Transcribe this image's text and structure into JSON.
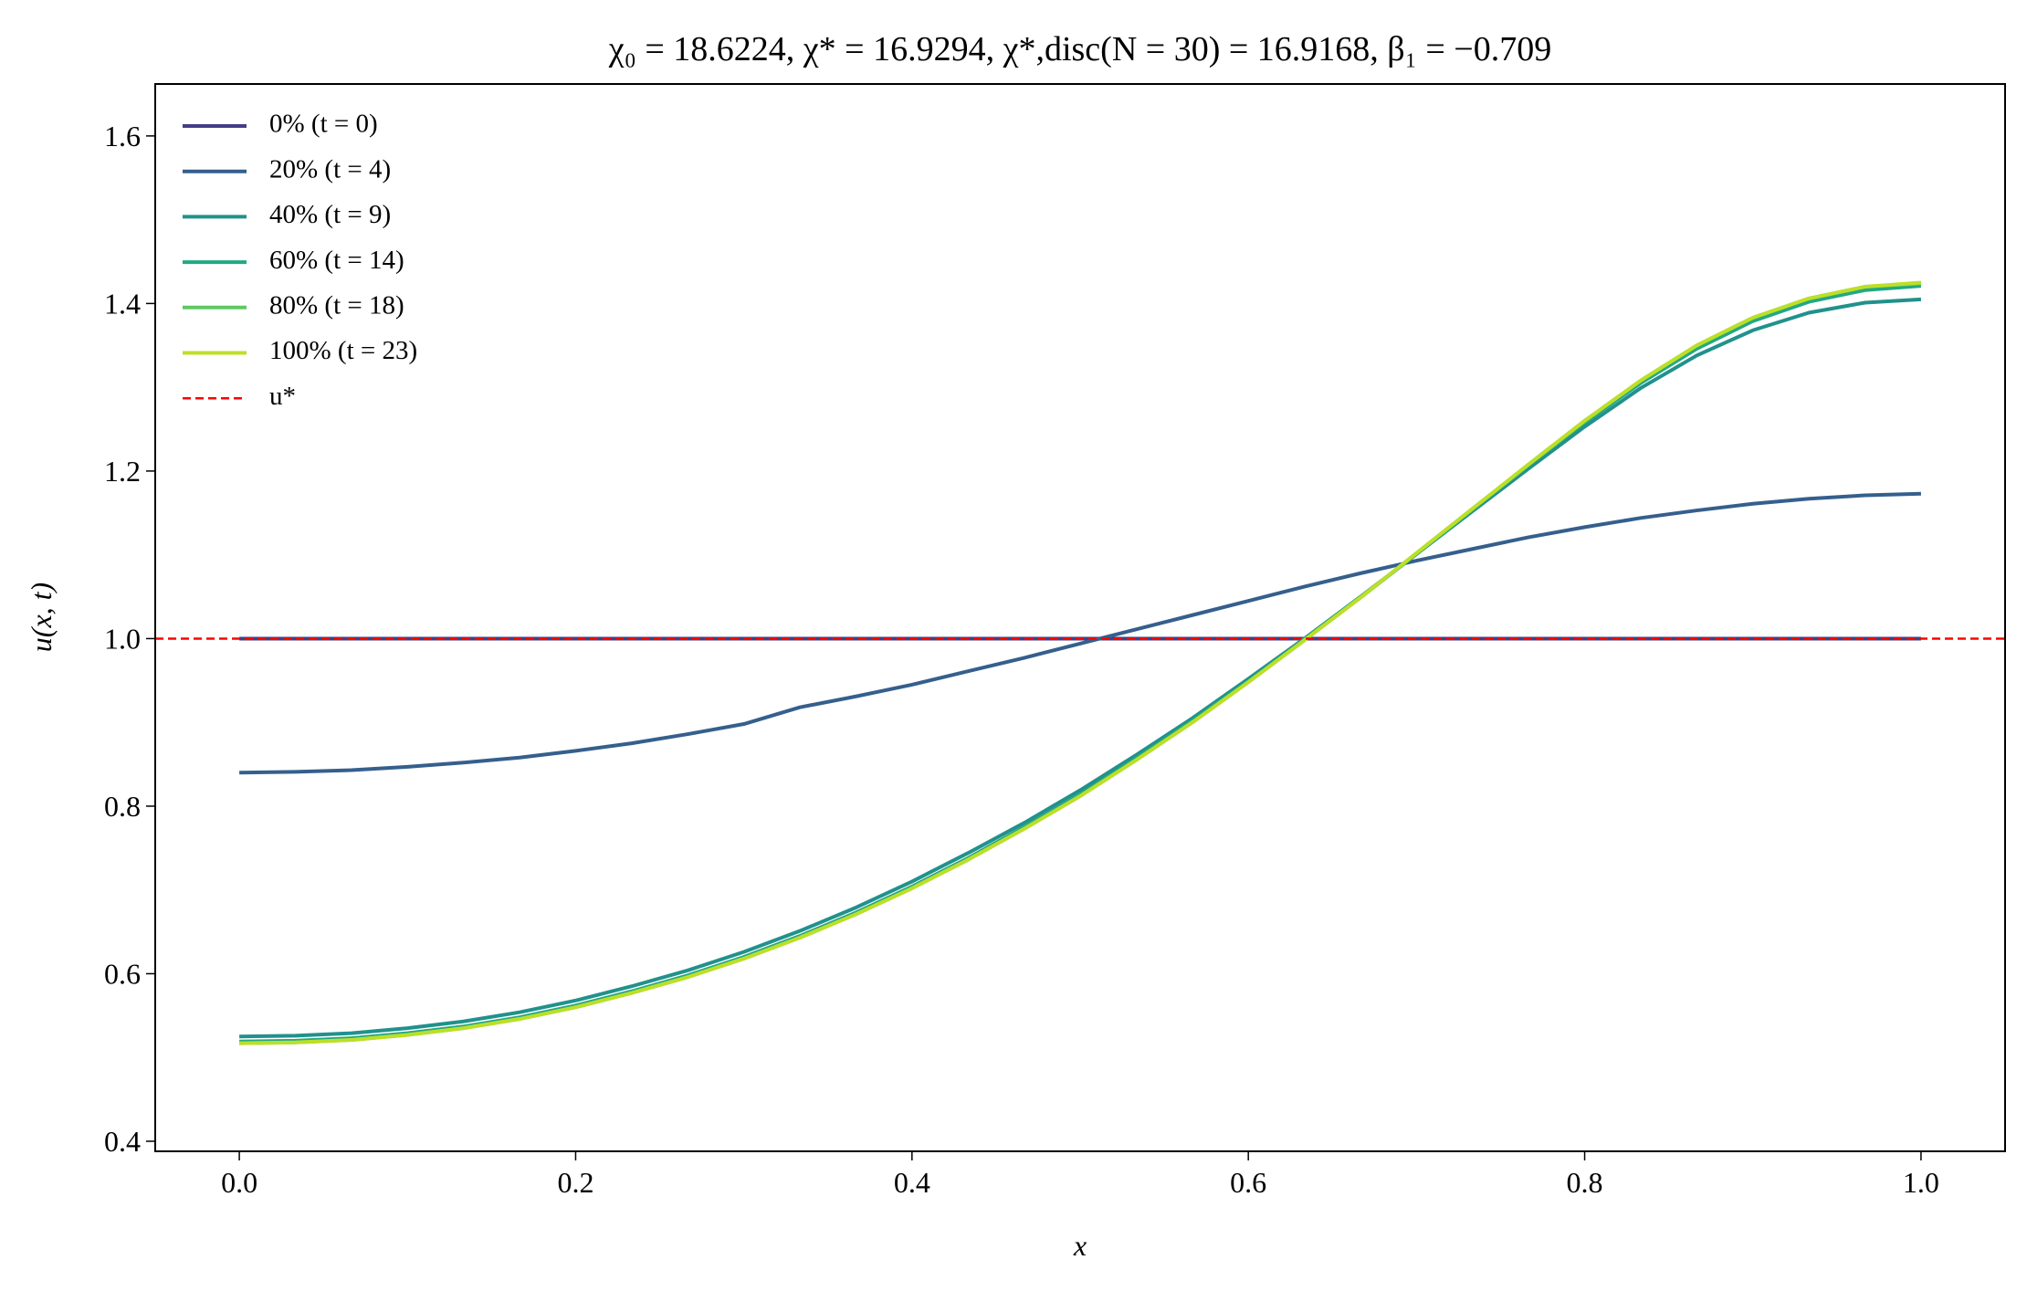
{
  "chart_data": {
    "type": "line",
    "title": "χ₀ = 18.6224,  χ* = 16.9294,  χ*,disc(N = 30) = 16.9168,  β₁ = −0.709",
    "xlabel": "x",
    "ylabel": "u(x, t)",
    "x": [
      0,
      0.0333,
      0.0667,
      0.1,
      0.1333,
      0.1667,
      0.2,
      0.2333,
      0.2667,
      0.3,
      0.3333,
      0.3667,
      0.4,
      0.4333,
      0.4667,
      0.5,
      0.5333,
      0.5667,
      0.6,
      0.6333,
      0.6667,
      0.7,
      0.7333,
      0.7667,
      0.8,
      0.8333,
      0.8667,
      0.9,
      0.9333,
      0.9667,
      1
    ],
    "series": [
      {
        "name": "0% (t = 0)",
        "color": "#433e85",
        "values": [
          1,
          1,
          1,
          1,
          1,
          1,
          1,
          1,
          1,
          1,
          1,
          1,
          1,
          1,
          1,
          1,
          1,
          1,
          1,
          1,
          1,
          1,
          1,
          1,
          1,
          1,
          1,
          1,
          1,
          1,
          1
        ]
      },
      {
        "name": "20% (t = 4)",
        "color": "#355f8d",
        "values": [
          0.84,
          0.841,
          0.843,
          0.847,
          0.852,
          0.858,
          0.866,
          0.875,
          0.886,
          0.898,
          0.918,
          0.931,
          0.945,
          0.961,
          0.977,
          0.994,
          1.011,
          1.028,
          1.045,
          1.062,
          1.078,
          1.093,
          1.107,
          1.121,
          1.133,
          1.144,
          1.153,
          1.161,
          1.167,
          1.171,
          1.173
        ]
      },
      {
        "name": "40% (t = 9)",
        "color": "#21918c",
        "values": [
          0.525,
          0.526,
          0.529,
          0.535,
          0.543,
          0.554,
          0.568,
          0.585,
          0.604,
          0.626,
          0.651,
          0.679,
          0.71,
          0.744,
          0.78,
          0.819,
          0.861,
          0.905,
          0.952,
          1.0,
          1.05,
          1.101,
          1.152,
          1.203,
          1.253,
          1.299,
          1.338,
          1.368,
          1.389,
          1.401,
          1.405
        ]
      },
      {
        "name": "60% (t = 14)",
        "color": "#22a884",
        "values": [
          0.519,
          0.52,
          0.523,
          0.529,
          0.537,
          0.548,
          0.562,
          0.579,
          0.598,
          0.62,
          0.645,
          0.673,
          0.704,
          0.738,
          0.775,
          0.814,
          0.857,
          0.902,
          0.949,
          0.999,
          1.049,
          1.101,
          1.154,
          1.207,
          1.258,
          1.305,
          1.346,
          1.379,
          1.402,
          1.416,
          1.421
        ]
      },
      {
        "name": "80% (t = 18)",
        "color": "#5ec962",
        "values": [
          0.517,
          0.518,
          0.521,
          0.527,
          0.535,
          0.546,
          0.56,
          0.577,
          0.596,
          0.618,
          0.643,
          0.671,
          0.702,
          0.736,
          0.773,
          0.812,
          0.855,
          0.9,
          0.948,
          0.998,
          1.049,
          1.102,
          1.155,
          1.208,
          1.26,
          1.308,
          1.35,
          1.383,
          1.406,
          1.42,
          1.424
        ]
      },
      {
        "name": "100% (t = 23)",
        "color": "#bddf26",
        "values": [
          0.517,
          0.518,
          0.521,
          0.527,
          0.535,
          0.546,
          0.56,
          0.577,
          0.596,
          0.618,
          0.643,
          0.671,
          0.702,
          0.736,
          0.773,
          0.812,
          0.855,
          0.9,
          0.948,
          0.998,
          1.049,
          1.102,
          1.155,
          1.208,
          1.26,
          1.308,
          1.35,
          1.383,
          1.406,
          1.42,
          1.425
        ]
      }
    ],
    "hlines": [
      {
        "name": "u*",
        "value": 1,
        "color": "#ff0000",
        "style": "dashed"
      }
    ],
    "xlim": [
      -0.05,
      1.05
    ],
    "ylim": [
      0.388,
      1.662
    ],
    "xticks": [
      {
        "value": 0,
        "label": "0.0"
      },
      0.2,
      0.4,
      0.6,
      0.8,
      {
        "value": 1,
        "label": "1.0"
      }
    ],
    "yticks": [
      0.4,
      0.6,
      0.8,
      {
        "value": 1,
        "label": "1.0"
      },
      1.2,
      1.4,
      1.6
    ],
    "legend": "upper left",
    "grid": false
  }
}
